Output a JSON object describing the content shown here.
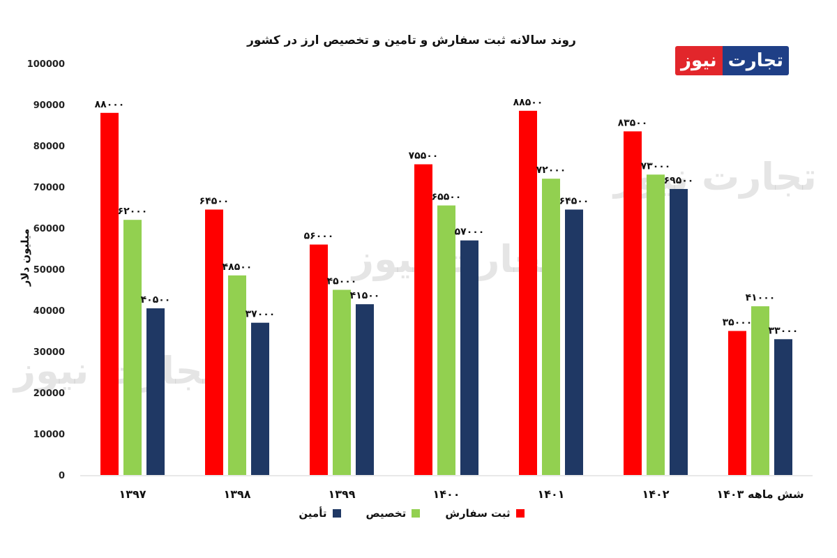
{
  "logo": {
    "part1": "تجارت",
    "part2": "نیوز"
  },
  "watermark": "تجارت نیوز",
  "colors": {
    "order": "#ff0000",
    "allocation": "#92d050",
    "supply": "#1f3864"
  },
  "chart_data": {
    "type": "bar",
    "title": "روند سالانه ثبت سفارش و تامین و تخصیص ارز در کشور",
    "xlabel": "",
    "ylabel": "میلیون دلار",
    "ylim": [
      0,
      100000
    ],
    "yticks": [
      0,
      10000,
      20000,
      30000,
      40000,
      50000,
      60000,
      70000,
      80000,
      90000,
      100000
    ],
    "grid": false,
    "legend_position": "bottom",
    "categories": [
      "۱۳۹۷",
      "۱۳۹۸",
      "۱۳۹۹",
      "۱۴۰۰",
      "۱۴۰۱",
      "۱۴۰۲",
      "شش ماهه ۱۴۰۳"
    ],
    "series": [
      {
        "name": "ثبت سفارش",
        "color": "#ff0000",
        "values": [
          88000,
          64500,
          56000,
          75500,
          88500,
          83500,
          35000
        ],
        "labels": [
          "۸۸۰۰۰",
          "۶۴۵۰۰",
          "۵۶۰۰۰",
          "۷۵۵۰۰",
          "۸۸۵۰۰",
          "۸۳۵۰۰",
          "۳۵۰۰۰"
        ]
      },
      {
        "name": "تخصیص",
        "color": "#92d050",
        "values": [
          62000,
          48500,
          45000,
          65500,
          72000,
          73000,
          41000
        ],
        "labels": [
          "۶۲۰۰۰",
          "۴۸۵۰۰",
          "۴۵۰۰۰",
          "۶۵۵۰۰",
          "۷۲۰۰۰",
          "۷۳۰۰۰",
          "۴۱۰۰۰"
        ]
      },
      {
        "name": "تأمین",
        "color": "#1f3864",
        "values": [
          40500,
          37000,
          41500,
          57000,
          64500,
          69500,
          33000
        ],
        "labels": [
          "۴۰۵۰۰",
          "۳۷۰۰۰",
          "۴۱۵۰۰",
          "۵۷۰۰۰",
          "۶۴۵۰۰",
          "۶۹۵۰۰",
          "۳۳۰۰۰"
        ]
      }
    ]
  }
}
